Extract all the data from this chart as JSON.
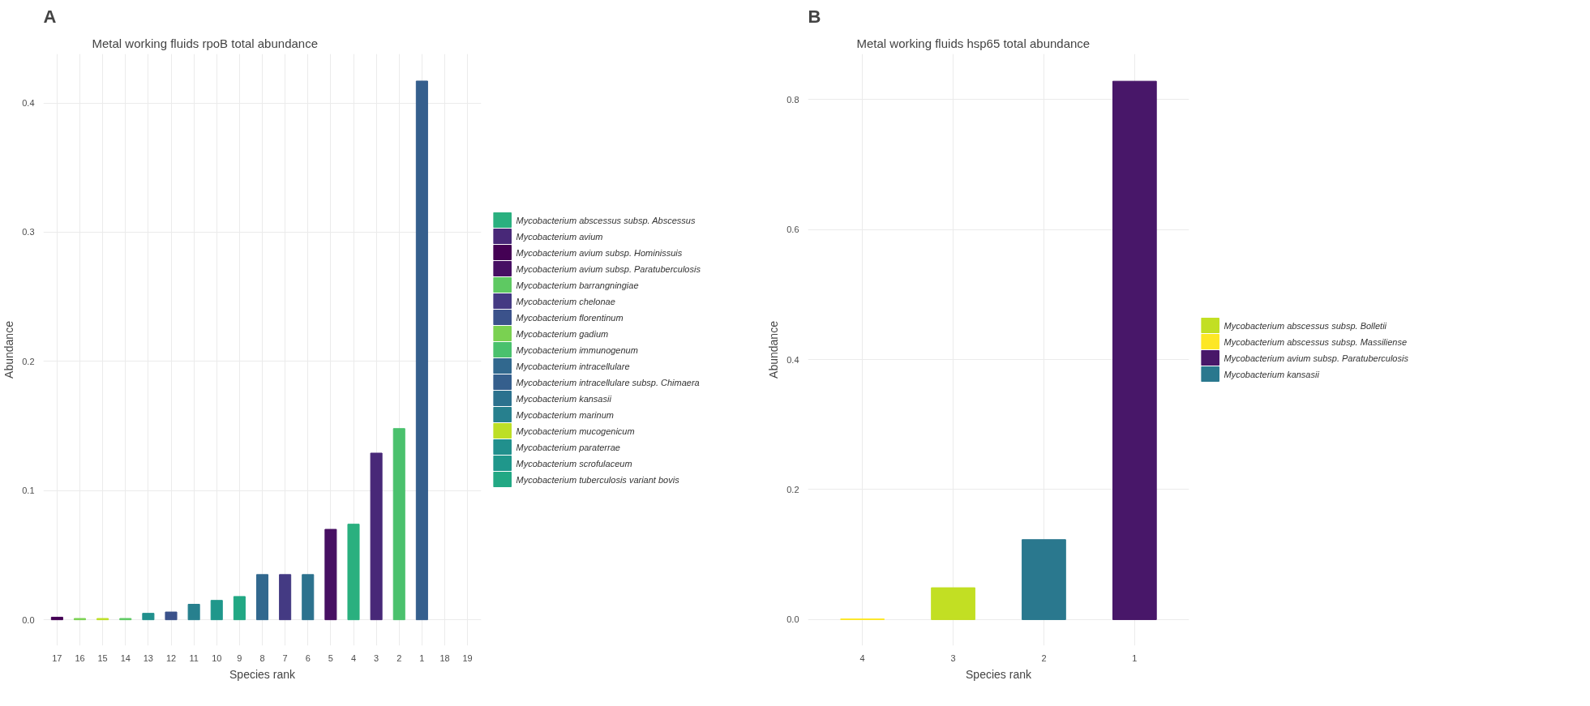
{
  "chart_data": [
    {
      "type": "bar",
      "title": "Metal working fluids rpoB total abundance",
      "xlabel": "Species rank",
      "ylabel": "Abundance",
      "annotations": [
        "A"
      ],
      "categories": [
        "17",
        "16",
        "15",
        "14",
        "13",
        "12",
        "11",
        "10",
        "9",
        "8",
        "7",
        "6",
        "5",
        "4",
        "3",
        "2",
        "1",
        "18",
        "19"
      ],
      "ylim": [
        -0.02,
        0.438
      ],
      "yticks": [
        {
          "value": 0,
          "label": "0.0"
        },
        0.1,
        0.2,
        0.3,
        0.4
      ],
      "grid": true,
      "legend": "right",
      "series": [
        {
          "name": "Mycobacterium abscessus subsp. Abscessus",
          "color": "#2ab07f",
          "values": [
            null,
            null,
            null,
            null,
            null,
            null,
            null,
            null,
            null,
            null,
            null,
            null,
            null,
            0.074,
            null,
            null,
            null,
            null,
            null
          ]
        },
        {
          "name": "Mycobacterium avium",
          "color": "#482878",
          "values": [
            null,
            null,
            null,
            null,
            null,
            null,
            null,
            null,
            null,
            null,
            null,
            null,
            null,
            null,
            0.129,
            null,
            null,
            null,
            null
          ]
        },
        {
          "name": "Mycobacterium avium subsp. Hominissuis",
          "color": "#440154",
          "values": [
            0.002,
            null,
            null,
            null,
            null,
            null,
            null,
            null,
            null,
            null,
            null,
            null,
            null,
            null,
            null,
            null,
            null,
            null,
            null
          ]
        },
        {
          "name": "Mycobacterium avium subsp. Paratuberculosis",
          "color": "#471063",
          "values": [
            null,
            null,
            null,
            null,
            null,
            null,
            null,
            null,
            null,
            null,
            null,
            null,
            0.07,
            null,
            null,
            null,
            null,
            null,
            null
          ]
        },
        {
          "name": "Mycobacterium barrangningiae",
          "color": "#5ec962",
          "values": [
            null,
            null,
            null,
            0.001,
            null,
            null,
            null,
            null,
            null,
            null,
            null,
            null,
            null,
            null,
            null,
            null,
            null,
            null,
            null
          ]
        },
        {
          "name": "Mycobacterium chelonae",
          "color": "#443a83",
          "values": [
            null,
            null,
            null,
            null,
            null,
            null,
            null,
            null,
            null,
            null,
            0.035,
            null,
            null,
            null,
            null,
            null,
            null,
            null,
            null
          ]
        },
        {
          "name": "Mycobacterium florentinum",
          "color": "#3b528b",
          "values": [
            null,
            null,
            null,
            null,
            null,
            0.006,
            null,
            null,
            null,
            null,
            null,
            null,
            null,
            null,
            null,
            null,
            null,
            null,
            null
          ]
        },
        {
          "name": "Mycobacterium gadium",
          "color": "#7ad151",
          "values": [
            null,
            0.001,
            null,
            null,
            null,
            null,
            null,
            null,
            null,
            null,
            null,
            null,
            null,
            null,
            null,
            null,
            null,
            null,
            null
          ]
        },
        {
          "name": "Mycobacterium immunogenum",
          "color": "#4ac16d",
          "values": [
            null,
            null,
            null,
            null,
            null,
            null,
            null,
            null,
            null,
            null,
            null,
            null,
            null,
            null,
            null,
            0.148,
            null,
            null,
            null
          ]
        },
        {
          "name": "Mycobacterium intracellulare",
          "color": "#31688e",
          "values": [
            null,
            null,
            null,
            null,
            null,
            null,
            null,
            null,
            null,
            0.035,
            null,
            null,
            null,
            null,
            null,
            null,
            null,
            null,
            null
          ]
        },
        {
          "name": "Mycobacterium intracellulare subsp. Chimaera",
          "color": "#355f8d",
          "values": [
            null,
            null,
            null,
            null,
            null,
            null,
            null,
            null,
            null,
            null,
            null,
            null,
            null,
            null,
            null,
            null,
            0.417,
            null,
            null
          ]
        },
        {
          "name": "Mycobacterium kansasii",
          "color": "#2c728e",
          "values": [
            null,
            null,
            null,
            null,
            null,
            null,
            null,
            null,
            null,
            null,
            null,
            0.035,
            null,
            null,
            null,
            null,
            null,
            null,
            null
          ]
        },
        {
          "name": "Mycobacterium marinum",
          "color": "#27808e",
          "values": [
            null,
            null,
            null,
            null,
            null,
            null,
            0.012,
            null,
            null,
            null,
            null,
            null,
            null,
            null,
            null,
            null,
            null,
            null,
            null
          ]
        },
        {
          "name": "Mycobacterium mucogenicum",
          "color": "#bddf26",
          "values": [
            null,
            null,
            0.001,
            null,
            null,
            null,
            null,
            null,
            null,
            null,
            null,
            null,
            null,
            null,
            null,
            null,
            null,
            null,
            null
          ]
        },
        {
          "name": "Mycobacterium paraterrae",
          "color": "#21908d",
          "values": [
            null,
            null,
            null,
            null,
            0.005,
            null,
            null,
            null,
            null,
            null,
            null,
            null,
            null,
            null,
            null,
            null,
            null,
            null,
            null
          ]
        },
        {
          "name": "Mycobacterium scrofulaceum",
          "color": "#1f978b",
          "values": [
            null,
            null,
            null,
            null,
            null,
            null,
            null,
            0.015,
            null,
            null,
            null,
            null,
            null,
            null,
            null,
            null,
            null,
            null,
            null
          ]
        },
        {
          "name": "Mycobacterium tuberculosis variant bovis",
          "color": "#22a884",
          "values": [
            null,
            null,
            null,
            null,
            null,
            null,
            null,
            null,
            0.018,
            null,
            null,
            null,
            null,
            null,
            null,
            null,
            null,
            null,
            null
          ]
        }
      ]
    },
    {
      "type": "bar",
      "title": "Metal working fluids hsp65 total abundance",
      "xlabel": "Species rank",
      "ylabel": "Abundance",
      "annotations": [
        "B"
      ],
      "categories": [
        "4",
        "3",
        "2",
        "1"
      ],
      "ylim": [
        -0.04,
        0.87
      ],
      "yticks": [
        {
          "value": 0,
          "label": "0.0"
        },
        0.2,
        0.4,
        0.6,
        0.8
      ],
      "grid": true,
      "legend": "right",
      "series": [
        {
          "name": "Mycobacterium abscessus subsp. Bolletii",
          "color": "#c2df23",
          "values": [
            null,
            0.049,
            null,
            null
          ]
        },
        {
          "name": "Mycobacterium abscessus subsp. Massiliense",
          "color": "#fde725",
          "values": [
            0.001,
            null,
            null,
            null
          ]
        },
        {
          "name": "Mycobacterium avium subsp. Paratuberculosis",
          "color": "#481769",
          "values": [
            null,
            null,
            null,
            0.828
          ]
        },
        {
          "name": "Mycobacterium kansasii",
          "color": "#2a788e",
          "values": [
            null,
            null,
            0.123,
            null
          ]
        }
      ]
    }
  ]
}
